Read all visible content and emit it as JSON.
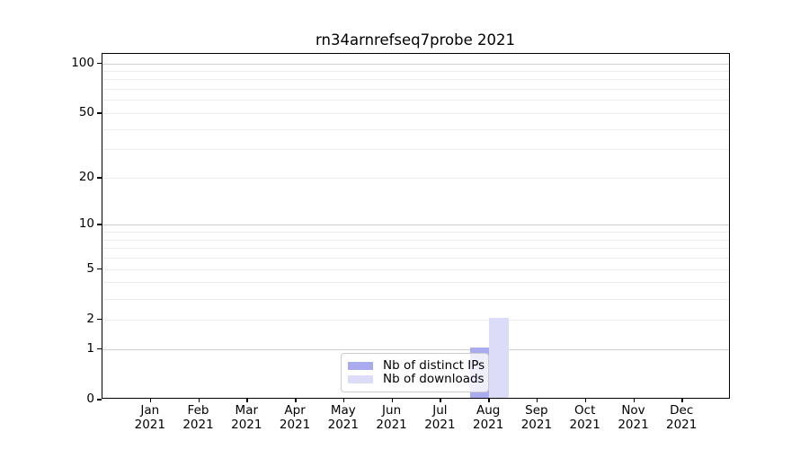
{
  "title": "rn34arnrefseq7probe 2021",
  "chart_data": {
    "type": "bar",
    "title": "rn34arnrefseq7probe 2021",
    "x_tick_months": [
      "Jan",
      "Feb",
      "Mar",
      "Apr",
      "May",
      "Jun",
      "Jul",
      "Aug",
      "Sep",
      "Oct",
      "Nov",
      "Dec"
    ],
    "x_tick_year": "2021",
    "series": [
      {
        "name": "Nb of distinct IPs",
        "color": "#aaaaee",
        "values": [
          0,
          0,
          0,
          0,
          0,
          0,
          0,
          1,
          0,
          0,
          0,
          0
        ]
      },
      {
        "name": "Nb of downloads",
        "color": "#dcdcf9",
        "values": [
          0,
          0,
          0,
          0,
          0,
          0,
          0,
          2,
          0,
          0,
          0,
          0
        ]
      }
    ],
    "yscale": "log1p",
    "ylim": [
      0,
      114
    ],
    "ytick_values": [
      0,
      1,
      2,
      5,
      10,
      20,
      50,
      100
    ],
    "major_gridlines": [
      1,
      10,
      100
    ],
    "minor_gridlines": [
      2,
      3,
      4,
      5,
      6,
      7,
      8,
      9,
      20,
      30,
      40,
      50,
      60,
      70,
      80,
      90
    ],
    "grid": "horizontal",
    "legend_position": "lower center",
    "axis_color": "#000000",
    "grid_major_color": "#d0d0d0",
    "grid_minor_color": "#ededed",
    "background_color": "#ffffff"
  }
}
